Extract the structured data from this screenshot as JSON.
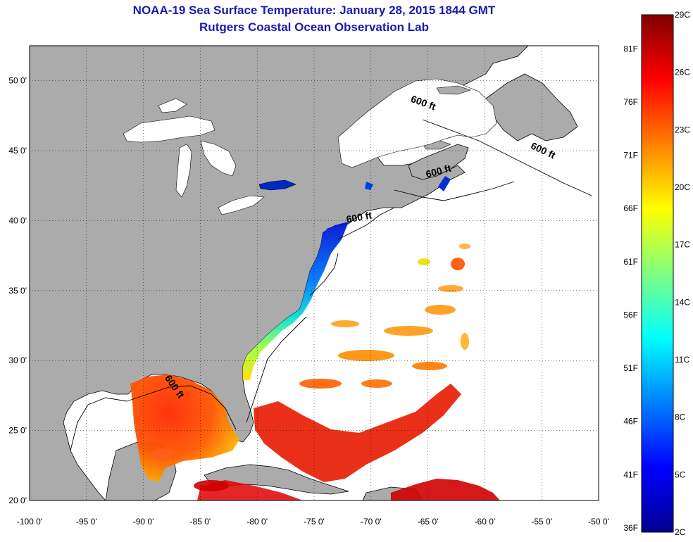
{
  "title": {
    "line1": "NOAA-19 Sea Surface Temperature:  January 28, 2015 1844 GMT",
    "line2": "Rutgers Coastal Ocean Observation Lab"
  },
  "map": {
    "lon_range": [
      -100,
      -50
    ],
    "lat_range": [
      20,
      52.5
    ],
    "x_ticks": [
      "-100 0'",
      "-95 0'",
      "-90 0'",
      "-85 0'",
      "-80 0'",
      "-75 0'",
      "-70 0'",
      "-65 0'",
      "-60 0'",
      "-55 0'",
      "-50 0'"
    ],
    "y_ticks": [
      "50 0'",
      "45 0'",
      "40 0'",
      "35 0'",
      "30 0'",
      "25 0'",
      "20 0'"
    ],
    "grid": true,
    "land_color": "#ababab",
    "no_data_color": "#ffffff",
    "depth_labels": [
      {
        "text": "600 ft",
        "lon": -65.5,
        "lat": 48.2
      },
      {
        "text": "600 ft",
        "lon": -55,
        "lat": 44.8
      },
      {
        "text": "600 ft",
        "lon": -64,
        "lat": 43.3
      },
      {
        "text": "600 ft",
        "lon": -71,
        "lat": 40
      },
      {
        "text": "600 ft",
        "lon": -87.5,
        "lat": 28
      }
    ]
  },
  "colorbar": {
    "min_c": 2,
    "max_c": 29,
    "celsius_labels": [
      "29C",
      "26C",
      "23C",
      "20C",
      "17C",
      "14C",
      "11C",
      "8C",
      "5C",
      "2C"
    ],
    "fahrenheit_labels": [
      "81F",
      "76F",
      "71F",
      "66F",
      "61F",
      "56F",
      "51F",
      "46F",
      "41F",
      "36F"
    ],
    "colors": [
      "#00008f",
      "#0000ff",
      "#0080ff",
      "#00ffff",
      "#80ff80",
      "#ffff00",
      "#ff8000",
      "#ff0000",
      "#800000"
    ]
  }
}
